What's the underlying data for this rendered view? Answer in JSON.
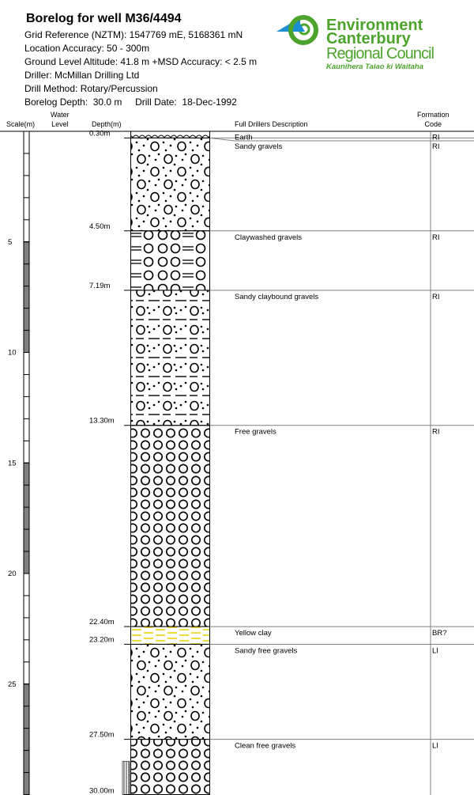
{
  "header": {
    "title": "Borelog for well M36/4494",
    "lines": [
      "Grid Reference (NZTM):  1547769 mE, 5168361 mN",
      "Location Accuracy:  50 - 300m",
      "Ground Level Altitude:  41.8 m +MSD Accuracy: < 2.5 m",
      "Driller:  McMillan Drilling Ltd",
      "Drill Method:  Rotary/Percussion",
      "Borelog Depth:  30.0 m     Drill Date:  18-Dec-1992"
    ]
  },
  "logo": {
    "line1": "Environment",
    "line2": "Canterbury",
    "line3": "Regional Council",
    "line4": "Kaunihera Taiao ki Waitaha",
    "green": "#4ca42c",
    "blue": "#1b8fd1"
  },
  "columns": {
    "scale": "Scale(m)",
    "water1": "Water",
    "water2": "Level",
    "depth": "Depth(m)",
    "description": "Full Drillers Description",
    "formation1": "Formation",
    "formation2": "Code"
  },
  "scale_ticks": [
    "5",
    "10",
    "15",
    "20",
    "25"
  ],
  "layers": [
    {
      "top": 0,
      "bottom": 0.3,
      "depth_label": "0.30m",
      "description": "Earth",
      "code": "RI",
      "pattern": "earth"
    },
    {
      "top": 0.3,
      "bottom": 4.5,
      "depth_label": "4.50m",
      "description": "Sandy gravels",
      "code": "RI",
      "pattern": "sandy-gravel"
    },
    {
      "top": 4.5,
      "bottom": 7.19,
      "depth_label": "7.19m",
      "description": "Claywashed gravels",
      "code": "RI",
      "pattern": "clay-gravel"
    },
    {
      "top": 7.19,
      "bottom": 13.3,
      "depth_label": "13.30m",
      "description": "Sandy claybound gravels",
      "code": "RI",
      "pattern": "sandy-clay-gravel"
    },
    {
      "top": 13.3,
      "bottom": 22.4,
      "depth_label": "22.40m",
      "description": "Free gravels",
      "code": "RI",
      "pattern": "gravel"
    },
    {
      "top": 22.4,
      "bottom": 23.2,
      "depth_label": "23.20m",
      "description": "Yellow clay",
      "code": "BR?",
      "pattern": "yellow-clay"
    },
    {
      "top": 23.2,
      "bottom": 27.5,
      "depth_label": "27.50m",
      "description": "Sandy free gravels",
      "code": "LI",
      "pattern": "sandy-gravel"
    },
    {
      "top": 27.5,
      "bottom": 30.0,
      "depth_label": "30.00m",
      "description": "Clean free gravels",
      "code": "LI",
      "pattern": "gravel"
    }
  ],
  "screen": {
    "top": 28.5,
    "bottom": 30.0
  },
  "colors": {
    "scale_fill": "#808080",
    "clay": "#e8d000",
    "line": "#808080"
  }
}
